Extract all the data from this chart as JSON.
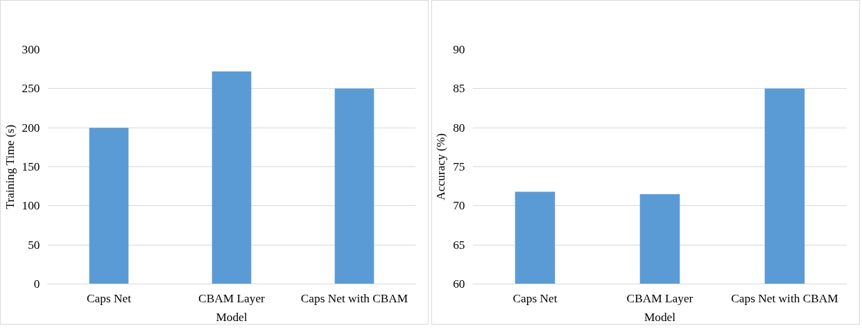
{
  "chart_data": [
    {
      "type": "bar",
      "xlabel": "Model",
      "ylabel": "Training Time (s)",
      "categories": [
        "Caps Net",
        "CBAM Layer",
        "Caps Net with CBAM"
      ],
      "values": [
        200,
        272,
        250
      ],
      "color": "#5b9bd5",
      "ylim": [
        0,
        300
      ],
      "yticks": [
        0,
        50,
        100,
        150,
        200,
        250,
        300
      ],
      "grid": "y"
    },
    {
      "type": "bar",
      "xlabel": "Model",
      "ylabel": "Accuracy (%)",
      "categories": [
        "Caps Net",
        "CBAM Layer",
        "Caps Net with CBAM"
      ],
      "values": [
        71.8,
        71.5,
        85
      ],
      "color": "#5b9bd5",
      "ylim": [
        60,
        90
      ],
      "yticks": [
        60,
        65,
        70,
        75,
        80,
        85,
        90
      ],
      "grid": "y"
    }
  ]
}
